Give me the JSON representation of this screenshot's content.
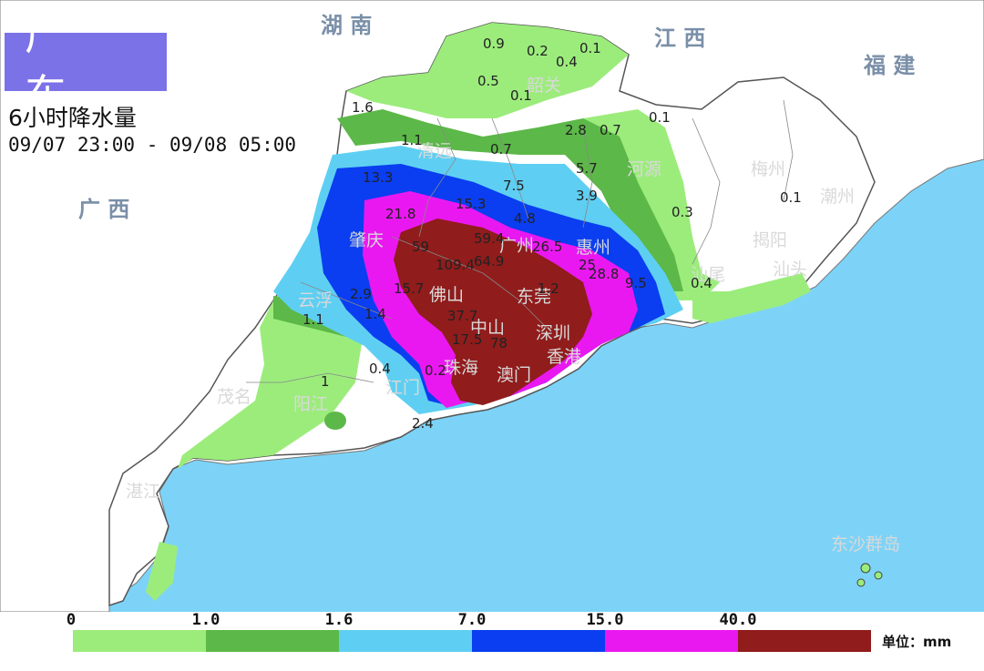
{
  "title": "广 东",
  "subtitle": "6小时降水量",
  "period": "09/07 23:00 - 09/08 05:00",
  "provinces": [
    {
      "name": "湖 南"
    },
    {
      "name": "江 西"
    },
    {
      "name": "福 建"
    },
    {
      "name": "广 西"
    }
  ],
  "cities": [
    "韶关",
    "清远",
    "河源",
    "梅州",
    "潮州",
    "揭阳",
    "汕头",
    "汕尾",
    "惠州",
    "广州",
    "肇庆",
    "佛山",
    "东莞",
    "中山",
    "深圳",
    "香港",
    "珠海",
    "澳门",
    "江门",
    "阳江",
    "茂名",
    "湛江",
    "云浮",
    "东沙群岛"
  ],
  "values": [
    "0.9",
    "0.2",
    "0.1",
    "0.4",
    "0.5",
    "0.1",
    "1.6",
    "1.1",
    "0.7",
    "2.8",
    "0.7",
    "0.1",
    "5.7",
    "7.5",
    "13.3",
    "15.3",
    "3.9",
    "21.8",
    "4.8",
    "0.3",
    "0.1",
    "59",
    "59.4",
    "26.5",
    "109.4",
    "64.9",
    "25",
    "28.8",
    "9.5",
    "0.4",
    "2.9",
    "15.7",
    "1.2",
    "1.1",
    "1.4",
    "37.7",
    "17.5",
    "78",
    "0.4",
    "1",
    "0.2",
    "2.4"
  ],
  "legend": {
    "ticks": [
      "0",
      "1.0",
      "1.6",
      "7.0",
      "15.0",
      "40.0"
    ],
    "unit": "单位：mm",
    "colors": [
      "#9cec7c",
      "#5cb848",
      "#5ecff2",
      "#0a3ef0",
      "#ea18f0",
      "#901c1c"
    ]
  },
  "colors": {
    "sea": "#7dd3f7",
    "land": "#ffffff",
    "title_bg": "#7b72e8"
  }
}
